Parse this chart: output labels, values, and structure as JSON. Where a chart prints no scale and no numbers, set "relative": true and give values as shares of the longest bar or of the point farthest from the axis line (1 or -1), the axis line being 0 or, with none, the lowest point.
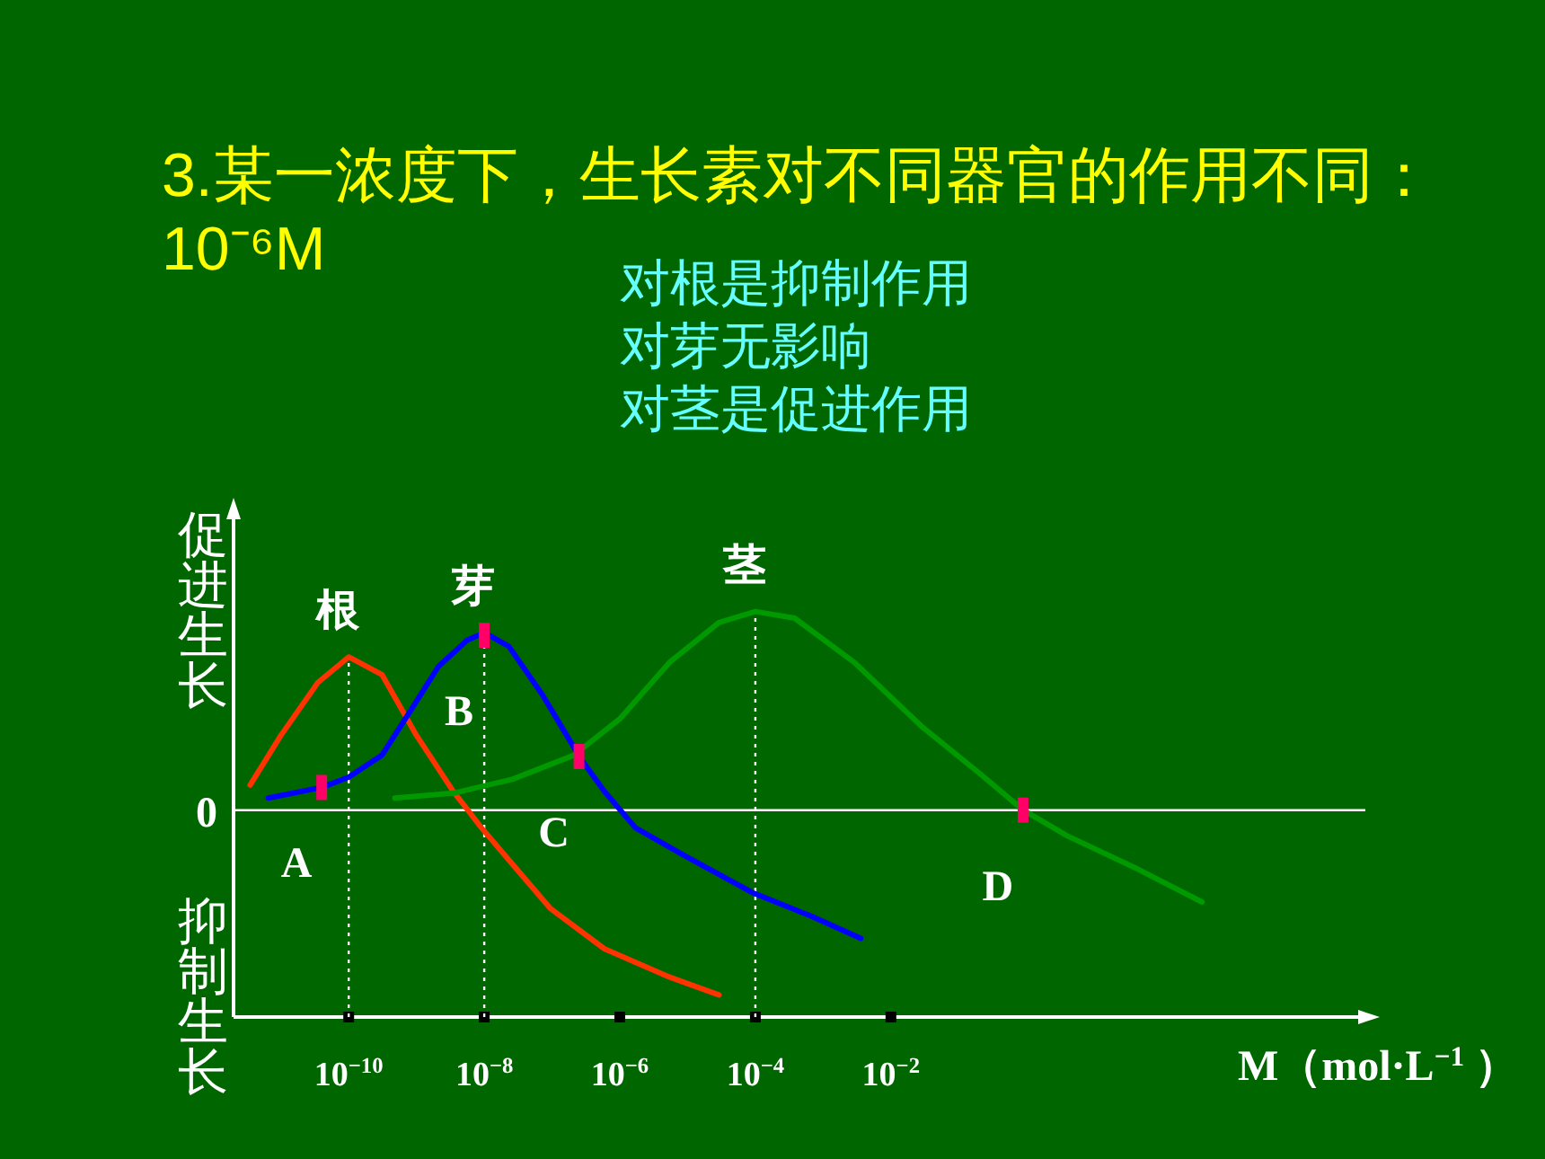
{
  "chart_data": {
    "type": "line",
    "relative": true,
    "log": "x",
    "title": "3.某一浓度下，生长素对不同器官的作用不同：  10⁻⁶M",
    "xlabel": "M（mol·L$^{−1}$ ）",
    "xlim": [
      2e-12,
      100000.0
    ],
    "xticks": [
      {
        "value": 1e-10,
        "label": "10$^{−10}$"
      },
      {
        "value": 1e-08,
        "label": "10$^{−8}$"
      },
      {
        "value": 1e-06,
        "label": "10$^{−6}$"
      },
      {
        "value": 0.0001,
        "label": "10$^{−4}$"
      },
      {
        "value": 0.01,
        "label": "10$^{−2}$"
      }
    ],
    "series": [
      {
        "name": "根",
        "color": "#ff3300",
        "x": [
          3.5e-12,
          1e-11,
          3.5e-11,
          1e-10,
          3.1e-10,
          1e-09,
          3.5e-09,
          9.1e-09,
          2.6e-08,
          9.5e-08,
          5.9e-07,
          5.4e-06,
          2.9e-05
        ],
        "values": [
          0.126,
          0.377,
          0.642,
          0.771,
          0.682,
          0.377,
          0.094,
          -0.089,
          -0.272,
          -0.495,
          -0.698,
          -0.84,
          -0.93
        ]
      },
      {
        "name": "芽",
        "color": "#0000ff",
        "x": [
          6.5e-12,
          4e-11,
          1e-10,
          3.1e-10,
          8.1e-10,
          2.1e-09,
          5.6e-09,
          1e-08,
          2.3e-08,
          7.2e-08,
          2.6e-07,
          5.9e-07,
          1.7e-06,
          9.3e-06,
          8.9e-05,
          0.00068,
          0.0036
        ],
        "values": [
          0.061,
          0.114,
          0.166,
          0.276,
          0.499,
          0.722,
          0.856,
          0.893,
          0.824,
          0.581,
          0.264,
          0.094,
          -0.089,
          -0.231,
          -0.414,
          -0.535,
          -0.645
        ]
      },
      {
        "name": "茎",
        "color": "#009900",
        "x": [
          4.8e-10,
          3.5e-09,
          2.6e-08,
          2.1e-07,
          1e-06,
          5.4e-06,
          2.9e-05,
          0.0001,
          0.00038,
          0.0029,
          0.029,
          0.22,
          0.89,
          4.0,
          41,
          390
        ],
        "values": [
          0.061,
          0.085,
          0.155,
          0.276,
          0.459,
          0.743,
          0.945,
          1.0,
          0.966,
          0.743,
          0.418,
          0.175,
          0,
          -0.13,
          -0.292,
          -0.463
        ]
      },
      {
        "type": "scatter",
        "color": "#ff0066",
        "x": [
          4e-11,
          1e-08,
          2.5e-07,
          0.89
        ],
        "values": [
          0.114,
          0.88,
          0.27,
          0
        ]
      }
    ],
    "ref_lines": [
      {
        "axis": "y",
        "value": 0,
        "label": "0",
        "color": "#ffffff",
        "line_style": "solid"
      },
      {
        "axis": "x",
        "value": 1e-10,
        "color": "#ffffff",
        "line_style": "dotted"
      },
      {
        "axis": "x",
        "value": 1e-08,
        "color": "#ffffff",
        "line_style": "dotted"
      },
      {
        "axis": "x",
        "value": 0.0001,
        "color": "#ffffff",
        "line_style": "dotted"
      }
    ],
    "annotations": [
      "对根是抑制作用",
      "对芽无影响",
      "对茎是促进作用",
      "促进生长",
      "抑制生长",
      {
        "text": "A",
        "x": 4e-11,
        "y": 0.114
      },
      {
        "text": "B",
        "x": 1e-08,
        "y": 0.88
      },
      {
        "text": "C",
        "x": 2.5e-07,
        "y": 0.27
      },
      {
        "text": "D",
        "x": 0.89,
        "y": 0
      }
    ]
  }
}
